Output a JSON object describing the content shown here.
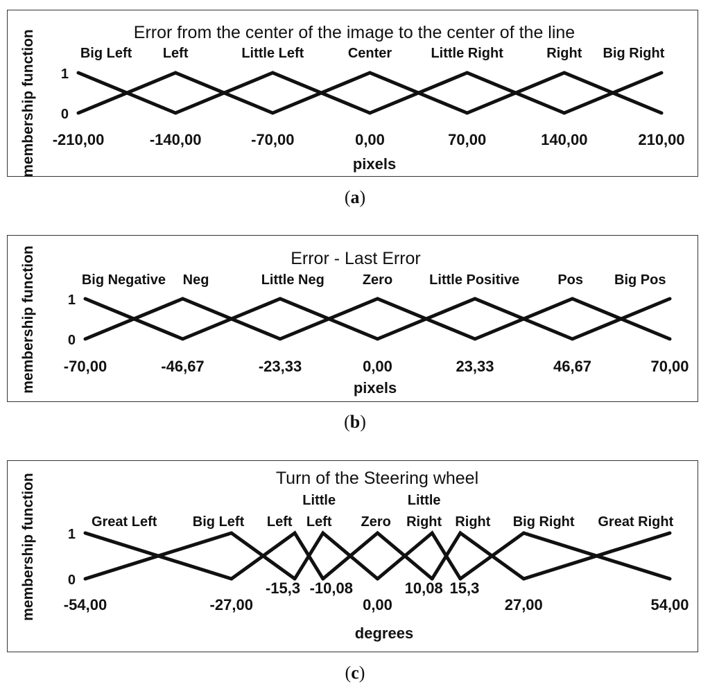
{
  "chart_data": [
    {
      "type": "line",
      "title": "Error from the center of the image to the center of the line",
      "xlabel": "pixels",
      "ylabel": "membership function",
      "caption": "a",
      "xlim": [
        -210,
        210
      ],
      "ylim": [
        0,
        1
      ],
      "y_ticks": [
        "0",
        "1"
      ],
      "x_ticks": [
        {
          "value": -210,
          "label": "-210,00"
        },
        {
          "value": -140,
          "label": "-140,00"
        },
        {
          "value": -70,
          "label": "-70,00"
        },
        {
          "value": 0,
          "label": "0,00"
        },
        {
          "value": 70,
          "label": "70,00"
        },
        {
          "value": 140,
          "label": "140,00"
        },
        {
          "value": 210,
          "label": "210,00"
        }
      ],
      "series": [
        {
          "name": "Big Left",
          "label_at": -190,
          "points": [
            [
              -210,
              1
            ],
            [
              -140,
              0
            ]
          ]
        },
        {
          "name": "Left",
          "label_at": -140,
          "points": [
            [
              -210,
              0
            ],
            [
              -140,
              1
            ],
            [
              -70,
              0
            ]
          ]
        },
        {
          "name": "Little Left",
          "label_at": -70,
          "points": [
            [
              -140,
              0
            ],
            [
              -70,
              1
            ],
            [
              0,
              0
            ]
          ]
        },
        {
          "name": "Center",
          "label_at": 0,
          "points": [
            [
              -70,
              0
            ],
            [
              0,
              1
            ],
            [
              70,
              0
            ]
          ]
        },
        {
          "name": "Little Right",
          "label_at": 70,
          "points": [
            [
              0,
              0
            ],
            [
              70,
              1
            ],
            [
              140,
              0
            ]
          ]
        },
        {
          "name": "Right",
          "label_at": 140,
          "points": [
            [
              70,
              0
            ],
            [
              140,
              1
            ],
            [
              210,
              0
            ]
          ]
        },
        {
          "name": "Big Right",
          "label_at": 190,
          "points": [
            [
              140,
              0
            ],
            [
              210,
              1
            ]
          ]
        }
      ]
    },
    {
      "type": "line",
      "title": "Error - Last Error",
      "xlabel": "pixels",
      "ylabel": "membership function",
      "caption": "b",
      "xlim": [
        -70,
        70
      ],
      "ylim": [
        0,
        1
      ],
      "y_ticks": [
        "0",
        "1"
      ],
      "x_ticks": [
        {
          "value": -70,
          "label": "-70,00"
        },
        {
          "value": -46.67,
          "label": "-46,67"
        },
        {
          "value": -23.33,
          "label": "-23,33"
        },
        {
          "value": 0,
          "label": "0,00"
        },
        {
          "value": 23.33,
          "label": "23,33"
        },
        {
          "value": 46.67,
          "label": "46,67"
        },
        {
          "value": 70,
          "label": "70,00"
        }
      ],
      "series": [
        {
          "name": "Big Negative",
          "label_at": -60.8,
          "points": [
            [
              -70,
              1
            ],
            [
              -46.67,
              0
            ]
          ]
        },
        {
          "name": "Neg",
          "label_at": -43.5,
          "points": [
            [
              -70,
              0
            ],
            [
              -46.67,
              1
            ],
            [
              -23.33,
              0
            ]
          ]
        },
        {
          "name": "Little Neg",
          "label_at": -20.3,
          "points": [
            [
              -46.67,
              0
            ],
            [
              -23.33,
              1
            ],
            [
              0,
              0
            ]
          ]
        },
        {
          "name": "Zero",
          "label_at": 0,
          "points": [
            [
              -23.33,
              0
            ],
            [
              0,
              1
            ],
            [
              23.33,
              0
            ]
          ]
        },
        {
          "name": "Little Positive",
          "label_at": 23.2,
          "points": [
            [
              0,
              0
            ],
            [
              23.33,
              1
            ],
            [
              46.67,
              0
            ]
          ]
        },
        {
          "name": "Pos",
          "label_at": 46.2,
          "points": [
            [
              23.33,
              0
            ],
            [
              46.67,
              1
            ],
            [
              70,
              0
            ]
          ]
        },
        {
          "name": "Big Pos",
          "label_at": 62.9,
          "points": [
            [
              46.67,
              0
            ],
            [
              70,
              1
            ]
          ]
        }
      ]
    },
    {
      "type": "line",
      "title": "Turn of the Steering wheel",
      "xlabel": "degrees",
      "ylabel": "membership function",
      "caption": "c",
      "xlim": [
        -54,
        54
      ],
      "ylim": [
        0,
        1
      ],
      "y_ticks": [
        "0",
        "1"
      ],
      "x_ticks": [
        {
          "value": -54,
          "label": "-54,00"
        },
        {
          "value": -27,
          "label": "-27,00"
        },
        {
          "value": 0,
          "label": "0,00"
        },
        {
          "value": 27,
          "label": "27,00"
        },
        {
          "value": 54,
          "label": "54,00"
        }
      ],
      "inner_ticks": [
        {
          "value": -15.3,
          "label": "-15,3"
        },
        {
          "value": -10.08,
          "label": "-10,08"
        },
        {
          "value": 10.08,
          "label": "10,08"
        },
        {
          "value": 15.3,
          "label": "15,3"
        }
      ],
      "series": [
        {
          "name": "Great Left",
          "label_lines": [
            "Great Left"
          ],
          "label_at": -46.8,
          "points": [
            [
              -54,
              1
            ],
            [
              -27,
              0
            ]
          ]
        },
        {
          "name": "Big Left",
          "label_lines": [
            "Big Left"
          ],
          "label_at": -29.4,
          "points": [
            [
              -54,
              0
            ],
            [
              -27,
              1
            ],
            [
              -15.3,
              0
            ]
          ]
        },
        {
          "name": "Left",
          "label_lines": [
            "Left"
          ],
          "label_at": -18.1,
          "points": [
            [
              -27,
              0
            ],
            [
              -15.3,
              1
            ],
            [
              -10.08,
              0
            ]
          ]
        },
        {
          "name": "Little Left",
          "label_lines": [
            "Little",
            "Left"
          ],
          "label_at": -10.8,
          "points": [
            [
              -15.3,
              0
            ],
            [
              -10.08,
              1
            ],
            [
              0,
              0
            ]
          ]
        },
        {
          "name": "Zero",
          "label_lines": [
            "Zero"
          ],
          "label_at": -0.3,
          "points": [
            [
              -10.08,
              0
            ],
            [
              0,
              1
            ],
            [
              10.08,
              0
            ]
          ]
        },
        {
          "name": "Little Right",
          "label_lines": [
            "Little",
            "Right"
          ],
          "label_at": 8.6,
          "points": [
            [
              0,
              0
            ],
            [
              10.08,
              1
            ],
            [
              15.3,
              0
            ]
          ]
        },
        {
          "name": "Right",
          "label_lines": [
            "Right"
          ],
          "label_at": 17.6,
          "points": [
            [
              10.08,
              0
            ],
            [
              15.3,
              1
            ],
            [
              27,
              0
            ]
          ]
        },
        {
          "name": "Big Right",
          "label_lines": [
            "Big Right"
          ],
          "label_at": 30.7,
          "points": [
            [
              15.3,
              0
            ],
            [
              27,
              1
            ],
            [
              54,
              0
            ]
          ]
        },
        {
          "name": "Great Right",
          "label_lines": [
            "Great Right"
          ],
          "label_at": 47.7,
          "points": [
            [
              27,
              0
            ],
            [
              54,
              1
            ]
          ]
        }
      ]
    }
  ]
}
